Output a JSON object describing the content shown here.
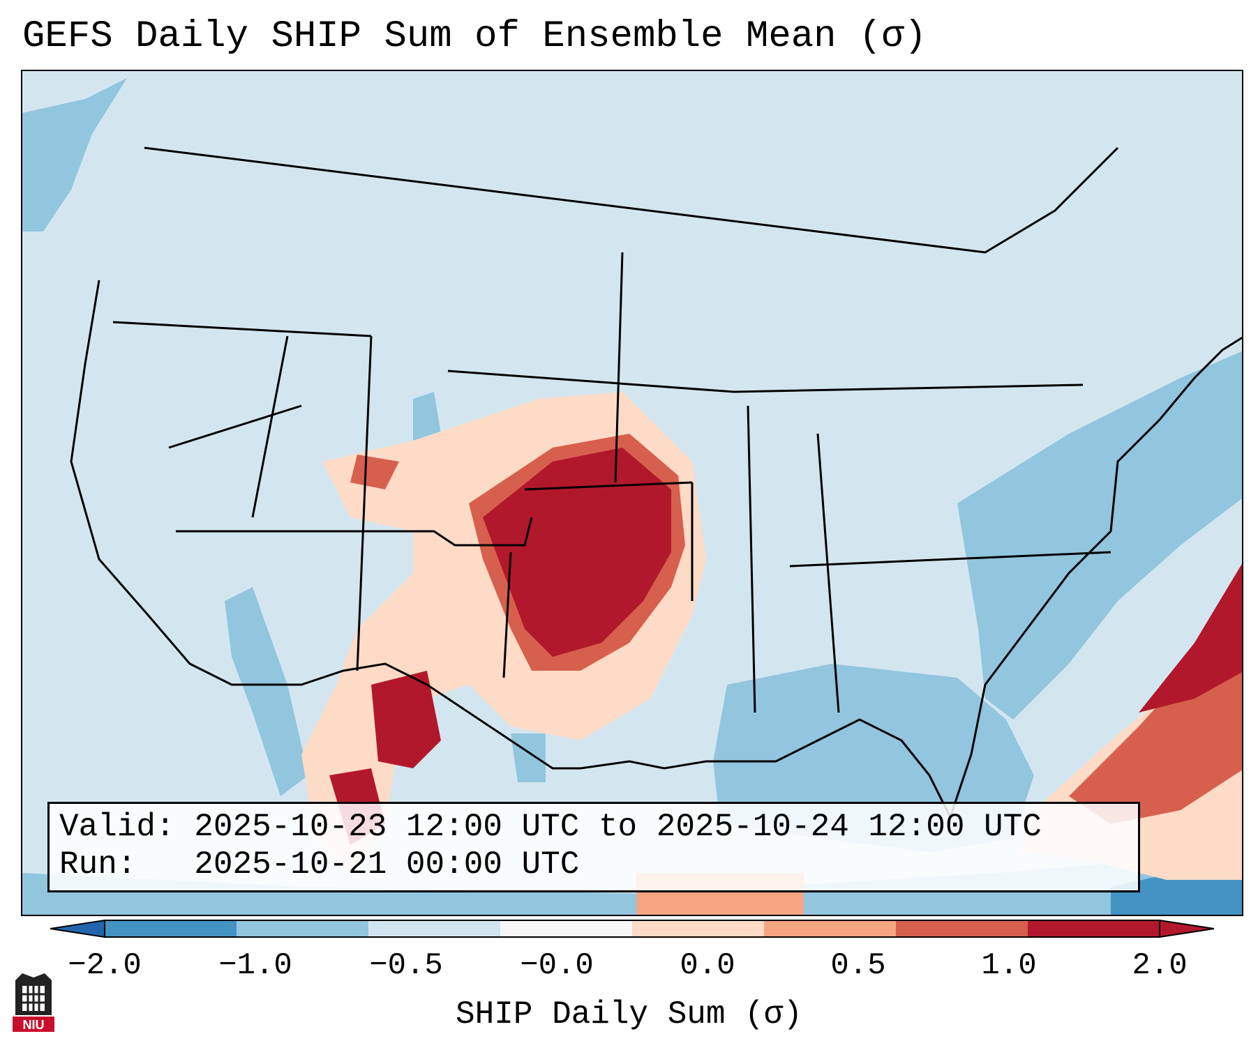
{
  "title": "GEFS Daily SHIP Sum of Ensemble Mean (σ)",
  "valid_label": "Valid:",
  "valid_value": "2025-10-23 12:00 UTC to 2025-10-24 12:00 UTC",
  "run_label": "Run:",
  "run_value": "2025-10-21 00:00 UTC",
  "colorbar": {
    "label": "SHIP Daily Sum (σ)",
    "ticks": [
      "−2.0",
      "−1.0",
      "−0.5",
      "−0.0",
      "0.0",
      "0.5",
      "1.0",
      "2.0"
    ],
    "colors": [
      "#4393c3",
      "#92c5de",
      "#d1e5f0",
      "#f7f7f7",
      "#fddbc7",
      "#f4a582",
      "#d6604d",
      "#b2182b"
    ],
    "under_color": "#2166ac",
    "over_color": "#b2182b"
  },
  "logo_text": "NIU",
  "colors": {
    "map_background": "#d3e6f0",
    "ocean_negative": "#92c5de",
    "strong_positive": "#b2182b",
    "moderate_positive": "#d6604d",
    "weak_positive": "#fddbc7"
  }
}
